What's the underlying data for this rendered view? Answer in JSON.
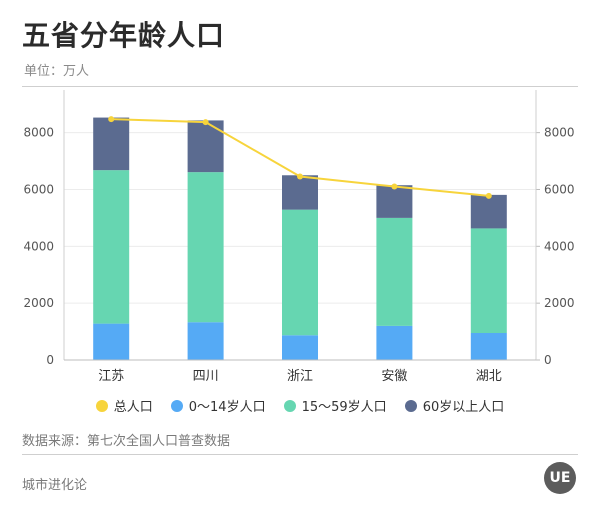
{
  "header": {
    "title": "五省分年龄人口",
    "unit": "单位：万人"
  },
  "footer": {
    "source": "数据来源：第七次全国人口普查数据",
    "brand": "城市进化论",
    "logo_text": "UE"
  },
  "chart_data": {
    "type": "bar",
    "stacked": true,
    "categories": [
      "江苏",
      "四川",
      "浙江",
      "安徽",
      "湖北"
    ],
    "series": [
      {
        "name": "0～14岁人口",
        "values": [
          1280,
          1330,
          870,
          1200,
          950
        ],
        "color": "#55aaf5"
      },
      {
        "name": "15～59岁人口",
        "values": [
          5400,
          5280,
          4420,
          3800,
          3680
        ],
        "color": "#66d6b1"
      },
      {
        "name": "60岁以上人口",
        "values": [
          1850,
          1820,
          1210,
          1150,
          1180
        ],
        "color": "#5b6b90"
      }
    ],
    "line_series": {
      "name": "总人口",
      "values": [
        8475,
        8368,
        6457,
        6103,
        5775
      ],
      "color": "#f7d43c"
    },
    "ylim": [
      0,
      9500
    ],
    "yticks": [
      0,
      2000,
      4000,
      6000,
      8000
    ],
    "ytick_labels": [
      "0",
      "2000",
      "4000",
      "6000",
      "8000"
    ],
    "legend_position": "bottom",
    "grid": true
  }
}
